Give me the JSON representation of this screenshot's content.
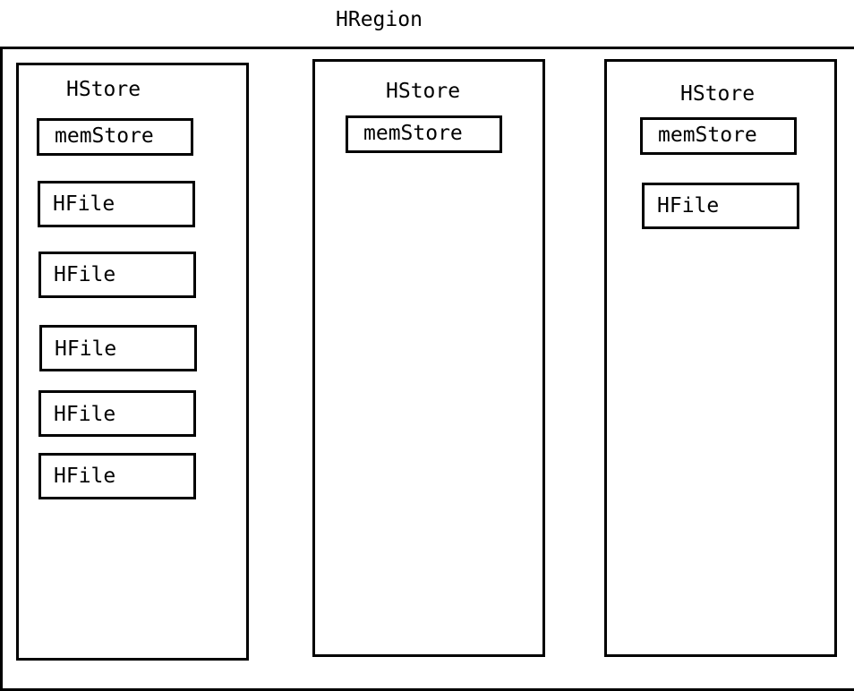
{
  "region": {
    "title": "HRegion"
  },
  "stores": [
    {
      "label": "HStore",
      "memstore": "memStore",
      "hfiles": [
        "HFile",
        "HFile",
        "HFile",
        "HFile",
        "HFile"
      ]
    },
    {
      "label": "HStore",
      "memstore": "memStore",
      "hfiles": []
    },
    {
      "label": "HStore",
      "memstore": "memStore",
      "hfiles": [
        "HFile"
      ]
    }
  ]
}
